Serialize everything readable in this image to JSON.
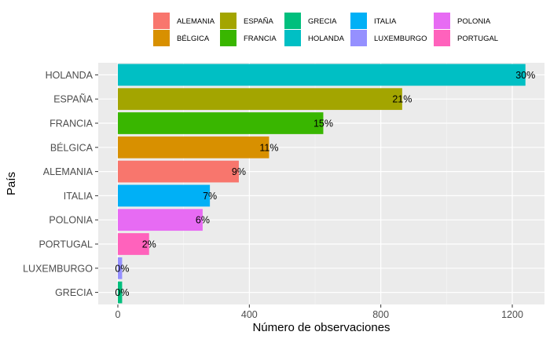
{
  "chart_data": {
    "type": "bar",
    "orientation": "horizontal",
    "xlabel": "Número de observaciones",
    "ylabel": "País",
    "xlim": [
      0,
      1300
    ],
    "xticks": [
      0,
      400,
      800,
      1200
    ],
    "grid": true,
    "legend_position": "top",
    "categories": [
      "HOLANDA",
      "ESPAÑA",
      "FRANCIA",
      "BÉLGICA",
      "ALEMANIA",
      "ITALIA",
      "POLONIA",
      "PORTUGAL",
      "LUXEMBURGO",
      "GRECIA"
    ],
    "values": [
      1240,
      865,
      625,
      460,
      368,
      280,
      258,
      95,
      13,
      13
    ],
    "labels": [
      "30%",
      "21%",
      "15%",
      "11%",
      "9%",
      "7%",
      "6%",
      "2%",
      "0%",
      "0%"
    ],
    "colors": {
      "ALEMANIA": "#F8766D",
      "BÉLGICA": "#D89000",
      "ESPAÑA": "#A3A500",
      "FRANCIA": "#39B600",
      "GRECIA": "#00BF7D",
      "HOLANDA": "#00BFC4",
      "ITALIA": "#00B0F6",
      "LUXEMBURGO": "#9590FF",
      "POLONIA": "#E76BF3",
      "PORTUGAL": "#FF62BC"
    },
    "legend": [
      "ALEMANIA",
      "BÉLGICA",
      "ESPAÑA",
      "FRANCIA",
      "GRECIA",
      "HOLANDA",
      "ITALIA",
      "LUXEMBURGO",
      "POLONIA",
      "PORTUGAL"
    ]
  }
}
